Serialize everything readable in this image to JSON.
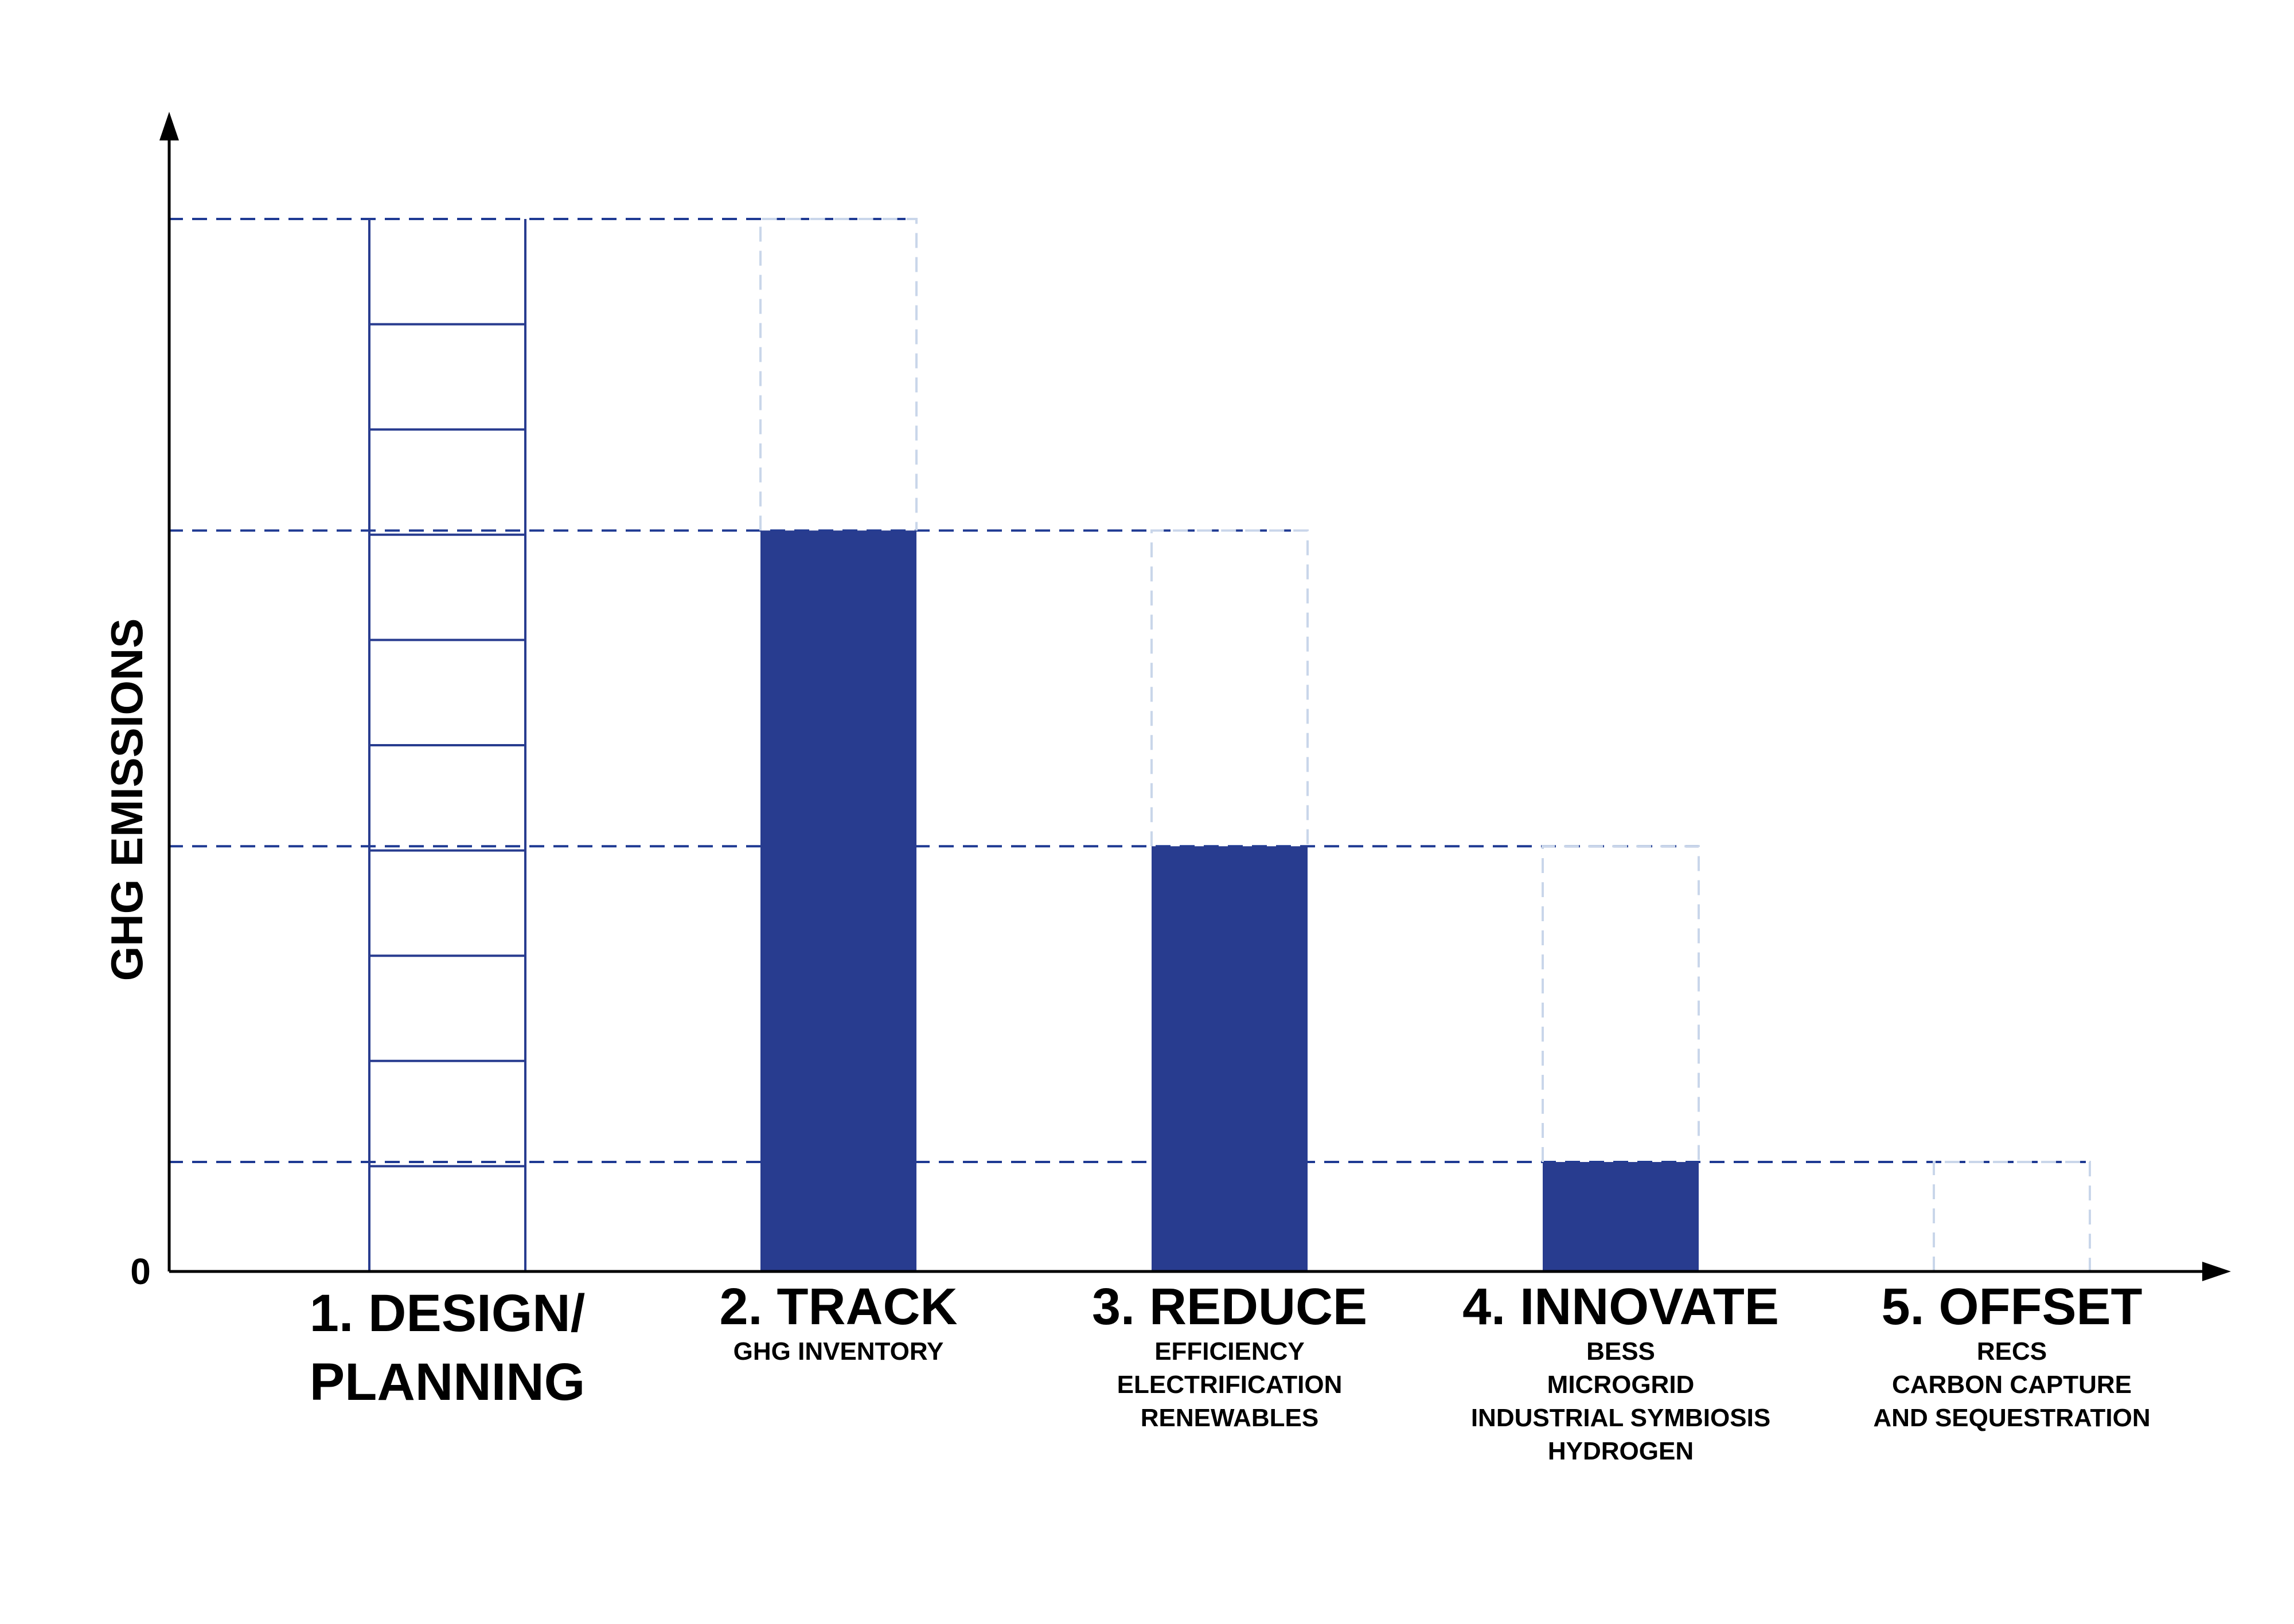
{
  "chart_data": {
    "type": "bar",
    "ylabel": "GHG EMISSIONS",
    "y_zero_label": "0",
    "ylim": [
      0,
      100
    ],
    "levels": [
      100,
      70.4,
      40.4,
      10.4
    ],
    "bar_color": "#283c8f",
    "guide_color": "#1f3a93",
    "ghost_color": "#c9d6ea",
    "categories": [
      {
        "name": "1. DESIGN/ PLANNING",
        "title_lines": [
          "1. DESIGN/",
          "PLANNING"
        ],
        "details": [],
        "style": "ladder",
        "value": 100,
        "ghost_top": null
      },
      {
        "name": "2. TRACK",
        "title_lines": [
          "2. TRACK"
        ],
        "details": [
          "GHG INVENTORY"
        ],
        "style": "filled",
        "value": 70.4,
        "ghost_top": 100
      },
      {
        "name": "3. REDUCE",
        "title_lines": [
          "3. REDUCE"
        ],
        "details": [
          "EFFICIENCY",
          "ELECTRIFICATION",
          "RENEWABLES"
        ],
        "style": "filled",
        "value": 40.4,
        "ghost_top": 70.4
      },
      {
        "name": "4. INNOVATE",
        "title_lines": [
          "4. INNOVATE"
        ],
        "details": [
          "BESS",
          "MICROGRID",
          "INDUSTRIAL SYMBIOSIS",
          "HYDROGEN"
        ],
        "style": "filled",
        "value": 10.4,
        "ghost_top": 40.4
      },
      {
        "name": "5. OFFSET",
        "title_lines": [
          "5. OFFSET"
        ],
        "details": [
          "RECS",
          "CARBON CAPTURE",
          "AND SEQUESTRATION"
        ],
        "style": "filled",
        "value": 0,
        "ghost_top": 10.4
      }
    ]
  }
}
